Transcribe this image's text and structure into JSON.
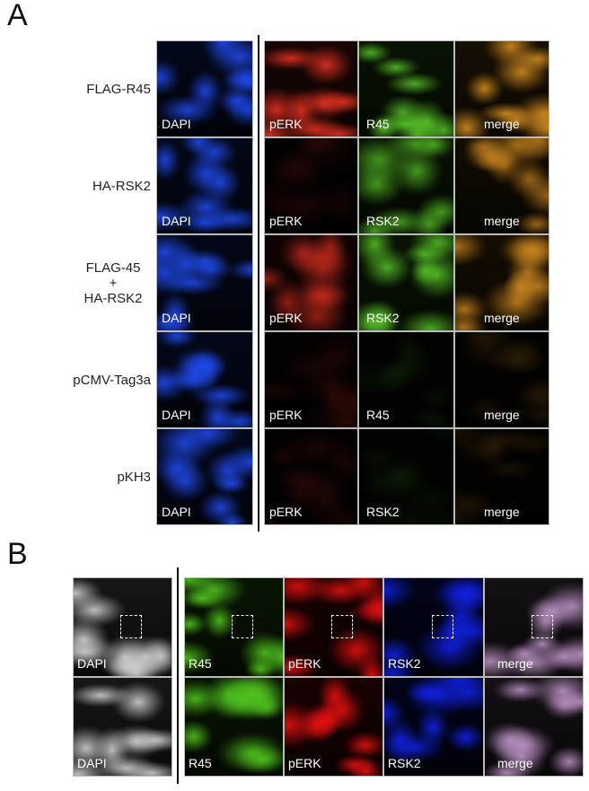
{
  "panel_a": {
    "label": "A",
    "rows": [
      {
        "label": "FLAG-R45",
        "channels": [
          "DAPI",
          "pERK",
          "R45",
          "merge"
        ],
        "intensity": [
          0.9,
          0.9,
          0.8,
          0.9
        ]
      },
      {
        "label": "HA-RSK2",
        "channels": [
          "DAPI",
          "pERK",
          "RSK2",
          "merge"
        ],
        "intensity": [
          0.9,
          0.08,
          0.7,
          0.7
        ]
      },
      {
        "label": "FLAG-45\n+\nHA-RSK2",
        "channels": [
          "DAPI",
          "pERK",
          "RSK2",
          "merge"
        ],
        "intensity": [
          0.9,
          0.6,
          0.8,
          0.8
        ]
      },
      {
        "label": "pCMV-Tag3a",
        "channels": [
          "DAPI",
          "pERK",
          "R45",
          "merge"
        ],
        "intensity": [
          0.9,
          0.1,
          0.06,
          0.1
        ]
      },
      {
        "label": "pKH3",
        "channels": [
          "DAPI",
          "pERK",
          "RSK2",
          "merge"
        ],
        "intensity": [
          0.9,
          0.1,
          0.06,
          0.1
        ]
      }
    ],
    "colors": {
      "DAPI": "#1f48e6",
      "pERK": "#e03020",
      "R45": "#5ccf2a",
      "RSK2": "#5ccf2a",
      "merge": "#d08a20"
    }
  },
  "panel_b": {
    "label": "B",
    "rows": [
      {
        "channels": [
          "DAPI",
          "R45",
          "pERK",
          "RSK2",
          "merge"
        ]
      },
      {
        "channels": [
          "DAPI",
          "R45",
          "pERK",
          "RSK2",
          "merge"
        ]
      }
    ],
    "colors": {
      "DAPI": "#cfcfcf",
      "R45": "#4fc21e",
      "pERK": "#e01010",
      "RSK2": "#1020e0",
      "merge": "#b88fc0"
    }
  }
}
